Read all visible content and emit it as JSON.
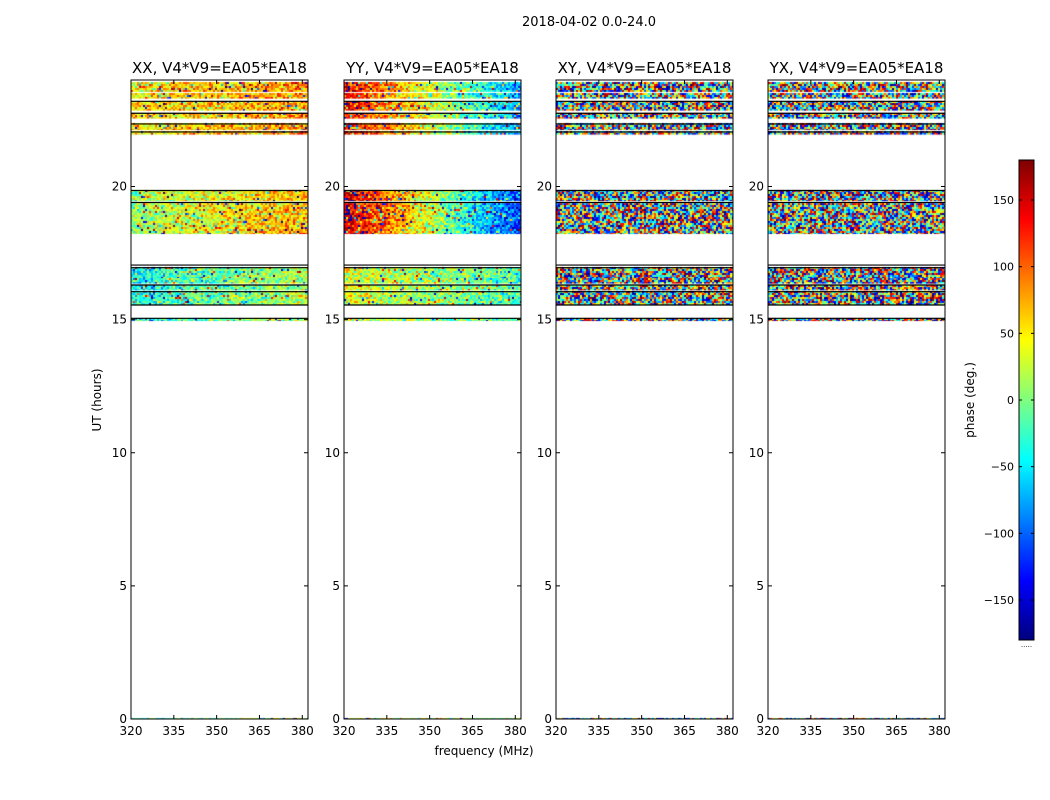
{
  "chart_data": {
    "type": "heatmap",
    "suptitle": "2018-04-02 0.0-24.0",
    "xlabel": "frequency (MHz)",
    "ylabel": "UT (hours)",
    "xlim": [
      320,
      382
    ],
    "ylim": [
      0,
      24
    ],
    "x_ticks": [
      320,
      335,
      350,
      365,
      380
    ],
    "y_ticks": [
      0,
      5,
      10,
      15,
      20
    ],
    "colorbar": {
      "label": "phase (deg.)",
      "range": [
        -180,
        180
      ],
      "ticks": [
        150,
        100,
        50,
        0,
        -50,
        -100,
        -150
      ],
      "tick_labels": [
        "150",
        "100",
        "50",
        "0",
        "−50",
        "−100",
        "−150"
      ],
      "colormap": "jet",
      "colormap_stops": [
        "#00007f",
        "#0000ff",
        "#007fff",
        "#00ffff",
        "#7fff7f",
        "#ffff00",
        "#ff7f00",
        "#ff0000",
        "#7f0000"
      ],
      "tail_label": "....."
    },
    "data_time_bands_ut_hours": [
      [
        0.0,
        0.02
      ],
      [
        14.98,
        15.05
      ],
      [
        15.55,
        16.05
      ],
      [
        16.1,
        16.3
      ],
      [
        16.35,
        16.55
      ],
      [
        16.6,
        16.95
      ],
      [
        18.25,
        19.35
      ],
      [
        19.45,
        19.85
      ],
      [
        21.95,
        22.05
      ],
      [
        22.15,
        22.35
      ],
      [
        22.55,
        22.75
      ],
      [
        22.85,
        23.2
      ],
      [
        23.3,
        23.5
      ],
      [
        23.55,
        23.9
      ]
    ],
    "panels": [
      {
        "name": "XX",
        "title": "XX, V4*V9=EA05*EA18",
        "character": "smooth",
        "bands": {
          "top": {
            "left": 50,
            "right": 85
          },
          "middle": {
            "left": 10,
            "right": 80
          },
          "lower": {
            "left": -40,
            "right": 20
          }
        }
      },
      {
        "name": "YY",
        "title": "YY, V4*V9=EA05*EA18",
        "character": "smooth",
        "bands": {
          "top": {
            "left": 140,
            "right": -80
          },
          "middle": {
            "left": 160,
            "right": -120
          },
          "lower": {
            "left": 40,
            "right": -20
          }
        }
      },
      {
        "name": "XY",
        "title": "XY, V4*V9=EA05*EA18",
        "character": "noise"
      },
      {
        "name": "YX",
        "title": "YX, V4*V9=EA05*EA18",
        "character": "noise"
      }
    ]
  }
}
